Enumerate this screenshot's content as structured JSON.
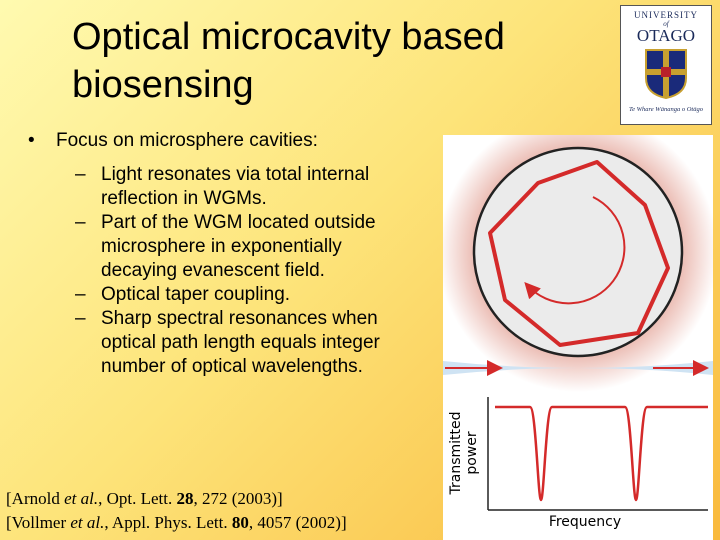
{
  "slide": {
    "title": [
      "Optical microcavity based",
      "biosensing"
    ],
    "bullet": "Focus on microsphere cavities:",
    "sub_bullets": [
      [
        "Light resonates via total internal",
        "reflection in WGMs."
      ],
      [
        "Part of the WGM located outside",
        "microsphere in exponentially",
        "decaying evanescent field."
      ],
      [
        "Optical taper coupling."
      ],
      [
        "Sharp spectral resonances when",
        "optical path length equals integer",
        "number of optical wavelengths."
      ]
    ],
    "references": [
      [
        "[Arnold ",
        "et al.",
        ", Opt. Lett. ",
        "28",
        ", 272 (2003)]"
      ],
      [
        "[Vollmer ",
        "et al.",
        ", Appl. Phys. Lett. ",
        "80",
        ", 4057 (2002)]"
      ]
    ],
    "figure": {
      "y_label": [
        "Transmitted",
        "power"
      ],
      "x_label": "Frequency"
    },
    "logo": {
      "top": "UNIVERSITY",
      "of": "of",
      "name": "OTAGO",
      "motto": "Te Whare Wānanga o Otāgo"
    }
  }
}
